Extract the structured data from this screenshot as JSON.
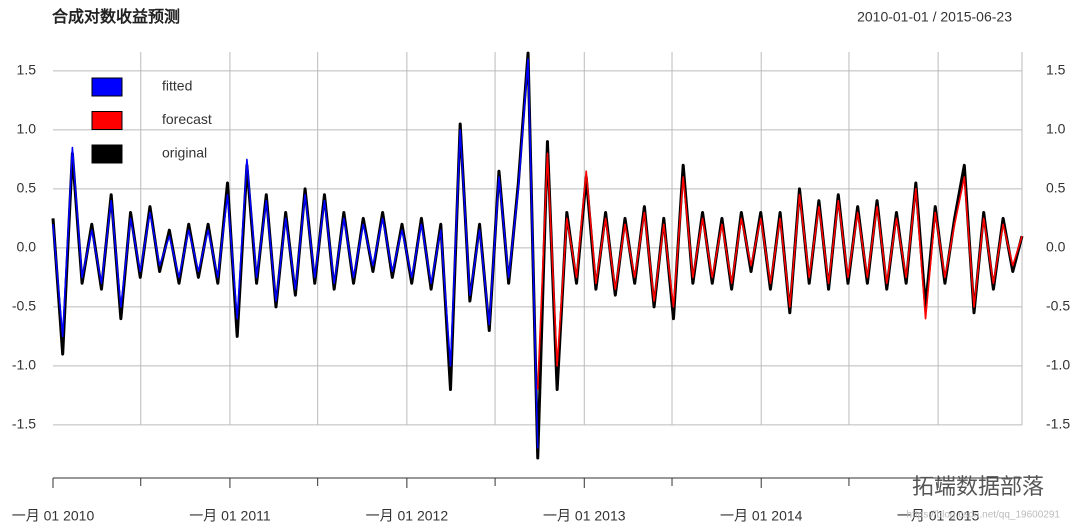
{
  "chart_data": {
    "type": "line",
    "title": "合成对数收益预测",
    "date_range": "2010-01-01 / 2015-06-23",
    "watermark": "拓端数据部落",
    "watermark_url": "https://blog.csdn.net/qq_19600291",
    "x": [
      "2010-01-01",
      "2010-01-21",
      "2010-02-10",
      "2010-03-02",
      "2010-03-22",
      "2010-04-11",
      "2010-05-01",
      "2010-05-21",
      "2010-06-10",
      "2010-06-30",
      "2010-07-20",
      "2010-08-09",
      "2010-08-29",
      "2010-09-18",
      "2010-10-08",
      "2010-10-28",
      "2010-11-17",
      "2010-12-07",
      "2010-12-27",
      "2011-01-16",
      "2011-02-05",
      "2011-02-25",
      "2011-03-17",
      "2011-04-06",
      "2011-04-26",
      "2011-05-16",
      "2011-06-05",
      "2011-06-25",
      "2011-07-15",
      "2011-08-04",
      "2011-08-24",
      "2011-09-13",
      "2011-10-03",
      "2011-10-23",
      "2011-11-12",
      "2011-12-02",
      "2011-12-22",
      "2012-01-11",
      "2012-01-31",
      "2012-02-20",
      "2012-03-11",
      "2012-03-31",
      "2012-04-20",
      "2012-05-10",
      "2012-05-30",
      "2012-06-19",
      "2012-07-09",
      "2012-07-29",
      "2012-08-18",
      "2012-09-07",
      "2012-09-27",
      "2012-10-17",
      "2012-11-06",
      "2012-11-26",
      "2012-12-16",
      "2013-01-05",
      "2013-01-25",
      "2013-02-14",
      "2013-03-06",
      "2013-03-26",
      "2013-04-15",
      "2013-05-05",
      "2013-05-25",
      "2013-06-14",
      "2013-07-04",
      "2013-07-24",
      "2013-08-13",
      "2013-09-02",
      "2013-09-22",
      "2013-10-12",
      "2013-11-01",
      "2013-11-21",
      "2013-12-11",
      "2013-12-31",
      "2014-01-20",
      "2014-02-09",
      "2014-03-01",
      "2014-03-21",
      "2014-04-10",
      "2014-04-30",
      "2014-05-20",
      "2014-06-09",
      "2014-06-29",
      "2014-07-19",
      "2014-08-08",
      "2014-08-28",
      "2014-09-17",
      "2014-10-07",
      "2014-10-27",
      "2014-11-16",
      "2014-12-06",
      "2014-12-26",
      "2015-01-15",
      "2015-02-04",
      "2015-02-24",
      "2015-03-16",
      "2015-04-05",
      "2015-04-25",
      "2015-05-15",
      "2015-06-04",
      "2015-06-23"
    ],
    "series": [
      {
        "name": "original",
        "color": "#000000",
        "values": [
          0.25,
          -0.9,
          0.8,
          -0.3,
          0.2,
          -0.35,
          0.45,
          -0.6,
          0.3,
          -0.25,
          0.35,
          -0.2,
          0.15,
          -0.3,
          0.2,
          -0.25,
          0.2,
          -0.3,
          0.55,
          -0.75,
          0.7,
          -0.3,
          0.45,
          -0.5,
          0.3,
          -0.4,
          0.5,
          -0.3,
          0.45,
          -0.35,
          0.3,
          -0.3,
          0.25,
          -0.2,
          0.3,
          -0.25,
          0.2,
          -0.3,
          0.25,
          -0.35,
          0.2,
          -1.2,
          1.05,
          -0.45,
          0.2,
          -0.7,
          0.65,
          -0.3,
          0.55,
          1.65,
          -1.78,
          0.9,
          -1.2,
          0.3,
          -0.3,
          0.6,
          -0.35,
          0.3,
          -0.4,
          0.25,
          -0.3,
          0.35,
          -0.5,
          0.25,
          -0.6,
          0.7,
          -0.3,
          0.3,
          -0.3,
          0.25,
          -0.35,
          0.3,
          -0.2,
          0.3,
          -0.35,
          0.3,
          -0.55,
          0.5,
          -0.3,
          0.4,
          -0.35,
          0.45,
          -0.3,
          0.35,
          -0.3,
          0.4,
          -0.35,
          0.3,
          -0.3,
          0.55,
          -0.5,
          0.35,
          -0.3,
          0.25,
          0.7,
          -0.55,
          0.3,
          -0.35,
          0.25,
          -0.2,
          0.1
        ]
      },
      {
        "name": "fitted",
        "color": "#0000ff",
        "values": [
          0.2,
          -0.75,
          0.85,
          -0.25,
          0.15,
          -0.3,
          0.4,
          -0.5,
          0.25,
          -0.2,
          0.3,
          -0.15,
          0.1,
          -0.25,
          0.15,
          -0.2,
          0.15,
          -0.25,
          0.45,
          -0.6,
          0.75,
          -0.25,
          0.4,
          -0.45,
          0.25,
          -0.35,
          0.45,
          -0.25,
          0.4,
          -0.3,
          0.25,
          -0.25,
          0.2,
          -0.15,
          0.25,
          -0.2,
          0.15,
          -0.25,
          0.2,
          -0.3,
          0.15,
          -1.0,
          1.0,
          -0.4,
          0.15,
          -0.65,
          0.6,
          -0.25,
          0.5,
          1.6,
          -1.7,
          null,
          null,
          null,
          null,
          null,
          null,
          null,
          null,
          null,
          null,
          null,
          null,
          null,
          null,
          null,
          null,
          null,
          null,
          null,
          null,
          null,
          null,
          null,
          null,
          null,
          null,
          null,
          null,
          null,
          null,
          null,
          null,
          null,
          null,
          null,
          null,
          null,
          null,
          null,
          null,
          null,
          null,
          null,
          null,
          null,
          null,
          null,
          null,
          null,
          null
        ]
      },
      {
        "name": "forecast",
        "color": "#ff0000",
        "values": [
          null,
          null,
          null,
          null,
          null,
          null,
          null,
          null,
          null,
          null,
          null,
          null,
          null,
          null,
          null,
          null,
          null,
          null,
          null,
          null,
          null,
          null,
          null,
          null,
          null,
          null,
          null,
          null,
          null,
          null,
          null,
          null,
          null,
          null,
          null,
          null,
          null,
          null,
          null,
          null,
          null,
          null,
          null,
          null,
          null,
          null,
          null,
          null,
          null,
          null,
          -1.2,
          0.8,
          -1.0,
          0.25,
          -0.25,
          0.65,
          -0.3,
          0.25,
          -0.35,
          0.2,
          -0.25,
          0.3,
          -0.45,
          0.2,
          -0.5,
          0.6,
          -0.25,
          0.25,
          -0.25,
          0.2,
          -0.3,
          0.25,
          -0.15,
          0.25,
          -0.3,
          0.25,
          -0.5,
          0.45,
          -0.25,
          0.35,
          -0.3,
          0.4,
          -0.25,
          0.3,
          -0.25,
          0.35,
          -0.3,
          0.25,
          -0.25,
          0.5,
          -0.6,
          0.3,
          -0.25,
          0.2,
          0.6,
          -0.5,
          0.25,
          -0.3,
          0.2,
          -0.15,
          0.1
        ]
      }
    ],
    "legend_order": [
      "fitted",
      "forecast",
      "original"
    ],
    "xlim": [
      "2010-01-01",
      "2015-06-23"
    ],
    "xticks": [
      {
        "value": "2010-01-01",
        "label": "一月 01 2010"
      },
      {
        "value": "2011-01-01",
        "label": "一月 01 2011"
      },
      {
        "value": "2012-01-01",
        "label": "一月 01 2012"
      },
      {
        "value": "2013-01-01",
        "label": "一月 01 2013"
      },
      {
        "value": "2014-01-01",
        "label": "一月 01 2014"
      },
      {
        "value": "2015-01-01",
        "label": "一月 01 2015"
      }
    ],
    "xminor": [
      "2010-07-01",
      "2011-07-01",
      "2012-07-01",
      "2013-07-01",
      "2014-07-01"
    ],
    "ylim": [
      -1.95,
      1.66
    ],
    "yticks": [
      {
        "value": -1.5,
        "label": "-1.5"
      },
      {
        "value": -1,
        "label": "-1.0"
      },
      {
        "value": -0.5,
        "label": "-0.5"
      },
      {
        "value": 0,
        "label": "0.0"
      },
      {
        "value": 0.5,
        "label": "0.5"
      },
      {
        "value": 1,
        "label": "1.0"
      },
      {
        "value": 1.5,
        "label": "1.5"
      }
    ],
    "grid": true,
    "legend": "top-left"
  }
}
